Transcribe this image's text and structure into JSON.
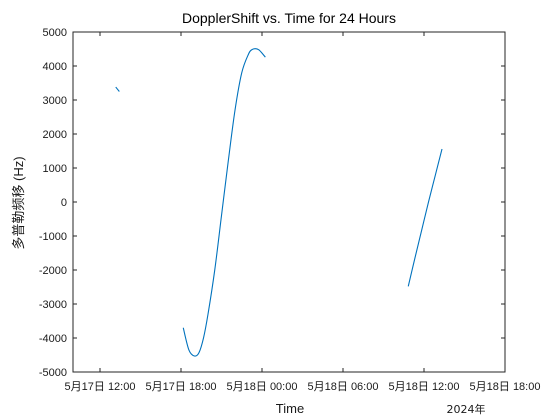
{
  "chart_data": {
    "type": "line",
    "title": "DopplerShift vs. Time for 24 Hours",
    "xlabel": "Time",
    "ylabel": "多普勒频移 (Hz)",
    "x_secondary_label": "2024年",
    "xlim": [
      "5月17日 10:00",
      "5月18日 18:00"
    ],
    "ylim": [
      -5000,
      5000
    ],
    "x_ticks": [
      "5月17日 12:00",
      "5月17日 18:00",
      "5月18日 00:00",
      "5月18日 06:00",
      "5月18日 12:00",
      "5月18日 18:00"
    ],
    "y_ticks": [
      "-5000",
      "-4000",
      "-3000",
      "-2000",
      "-1000",
      "0",
      "1000",
      "2000",
      "3000",
      "4000",
      "5000"
    ],
    "grid": false,
    "line_color": "#0072BD",
    "series": [
      {
        "x": [
          "5月17日 13:10",
          "5月17日 13:26"
        ],
        "y": [
          3380,
          3250
        ]
      },
      {
        "x": [
          "5月17日 18:10",
          "5月17日 18:35",
          "5月17日 19:00",
          "5月17日 19:20",
          "5月17日 19:40",
          "5月17日 20:00",
          "5月17日 20:30",
          "5月17日 21:00",
          "5月17日 21:30",
          "5月17日 22:00",
          "5月17日 22:30",
          "5月17日 23:00",
          "5月17日 23:15",
          "5月17日 23:30",
          "5月17日 23:45",
          "5月18日 00:00",
          "5月18日 00:15"
        ],
        "y": [
          -3700,
          -4350,
          -4530,
          -4430,
          -4000,
          -3300,
          -2000,
          -400,
          1200,
          2700,
          3800,
          4350,
          4480,
          4510,
          4480,
          4380,
          4260
        ]
      },
      {
        "x": [
          "5月18日 10:50",
          "5月18日 11:20",
          "5月18日 11:50",
          "5月18日 12:20",
          "5月18日 12:50",
          "5月18日 13:20"
        ],
        "y": [
          -2480,
          -1640,
          -820,
          0,
          780,
          1560
        ]
      }
    ]
  }
}
